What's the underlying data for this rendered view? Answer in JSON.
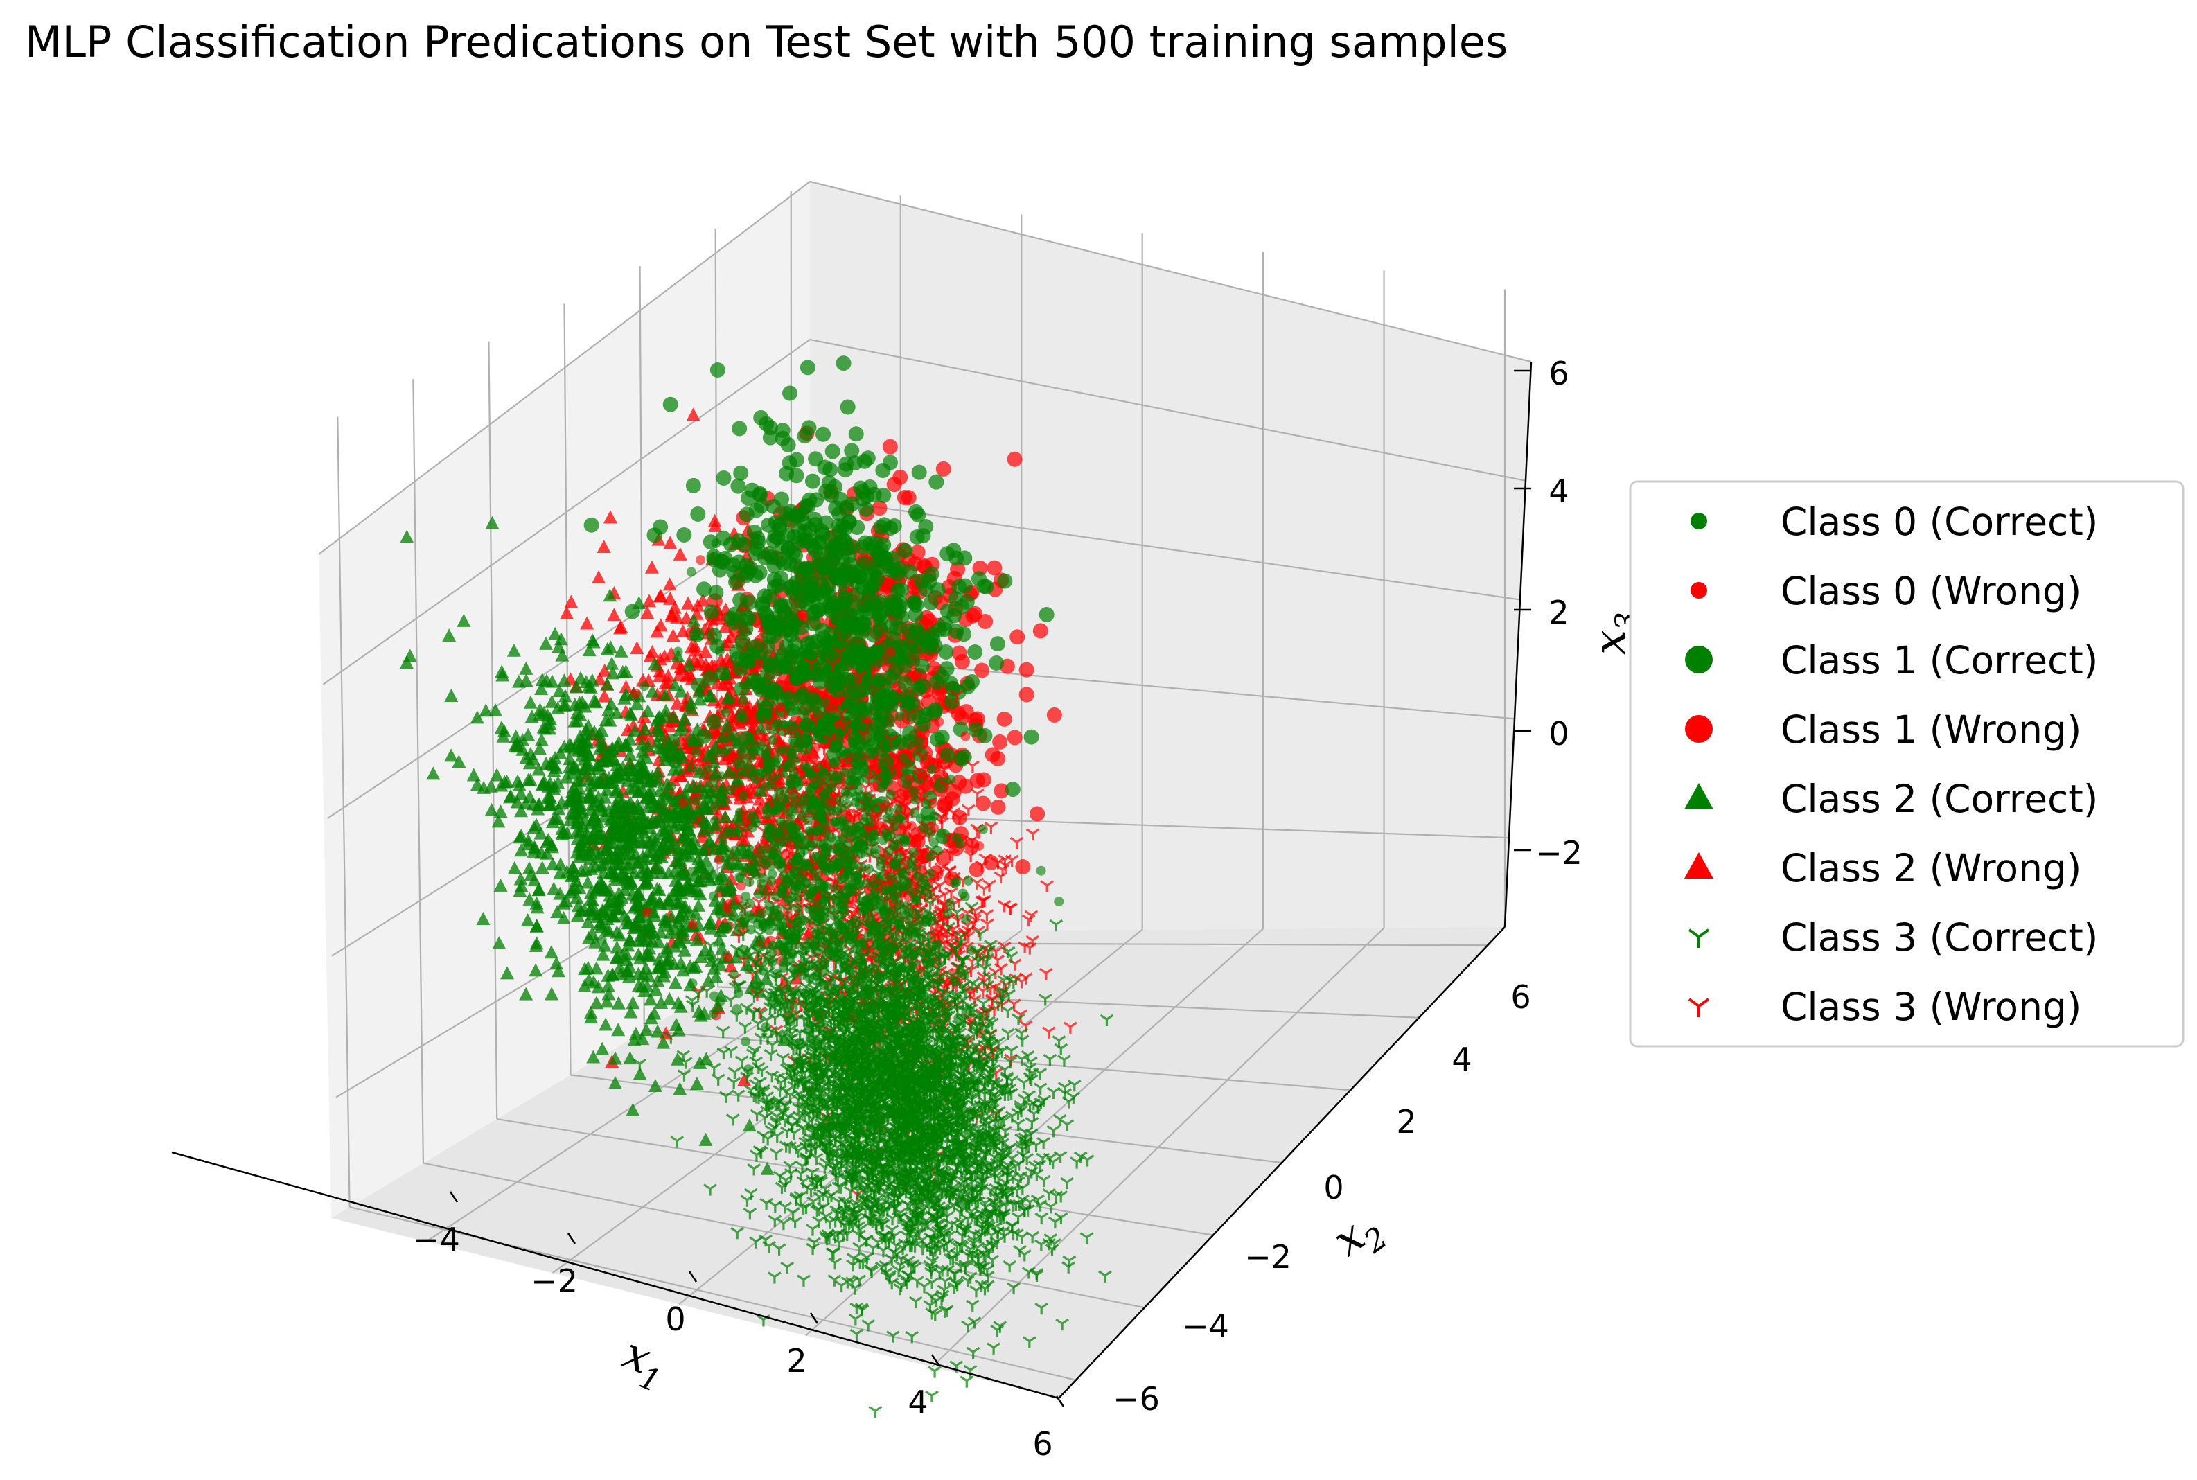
{
  "chart_data": {
    "type": "scatter",
    "title": "MLP Classification Predications on Test Set with 500 training samples",
    "projection": "3d",
    "axes": {
      "x": {
        "label": "x",
        "subscript": "1",
        "ticks": [
          "−4",
          "−2",
          "0",
          "2",
          "4",
          "6"
        ],
        "lim": [
          -5.5,
          6
        ]
      },
      "y": {
        "label": "x",
        "subscript": "2",
        "ticks": [
          "−6",
          "−4",
          "−2",
          "0",
          "2",
          "4",
          "6"
        ],
        "lim": [
          -6.5,
          6.5
        ]
      },
      "z": {
        "label": "x",
        "subscript": "3",
        "ticks": [
          "−2",
          "0",
          "2",
          "4",
          "6"
        ],
        "lim": [
          -3.5,
          6
        ]
      }
    },
    "grid": true,
    "legend_position": "center-right",
    "colors": {
      "correct": "#008000",
      "wrong": "#ff0000",
      "pane": "#f2f2f2",
      "grid": "#b0b0b0"
    },
    "series": [
      {
        "name": "Class 0 (Correct)",
        "marker": "small-circle",
        "color": "#008000",
        "cluster": {
          "center": [
            0.5,
            0.5,
            0.5
          ],
          "spread": 1.0,
          "count": 900
        }
      },
      {
        "name": "Class 0 (Wrong)",
        "marker": "small-circle",
        "color": "#ff0000",
        "cluster": {
          "center": [
            0.5,
            0.5,
            0.5
          ],
          "spread": 1.1,
          "count": 150
        }
      },
      {
        "name": "Class 1 (Correct)",
        "marker": "circle",
        "color": "#008000",
        "cluster": {
          "center": [
            0.5,
            1.0,
            3.5
          ],
          "spread": 1.0,
          "count": 700
        }
      },
      {
        "name": "Class 1 (Wrong)",
        "marker": "circle",
        "color": "#ff0000",
        "cluster": {
          "center": [
            1.0,
            1.5,
            3.0
          ],
          "spread": 1.0,
          "count": 500
        }
      },
      {
        "name": "Class 2 (Correct)",
        "marker": "triangle",
        "color": "#008000",
        "cluster": {
          "center": [
            -2.5,
            -0.5,
            0.0
          ],
          "spread": 1.0,
          "count": 1100
        }
      },
      {
        "name": "Class 2 (Wrong)",
        "marker": "triangle",
        "color": "#ff0000",
        "cluster": {
          "center": [
            -1.0,
            0.5,
            1.5
          ],
          "spread": 1.0,
          "count": 700
        }
      },
      {
        "name": "Class 3 (Correct)",
        "marker": "tri-down",
        "color": "#008000",
        "cluster": {
          "center": [
            2.0,
            -1.0,
            -1.5
          ],
          "spread": 1.0,
          "count": 3600
        }
      },
      {
        "name": "Class 3 (Wrong)",
        "marker": "tri-down",
        "color": "#ff0000",
        "cluster": {
          "center": [
            1.5,
            0.0,
            0.5
          ],
          "spread": 1.0,
          "count": 900
        }
      }
    ]
  }
}
